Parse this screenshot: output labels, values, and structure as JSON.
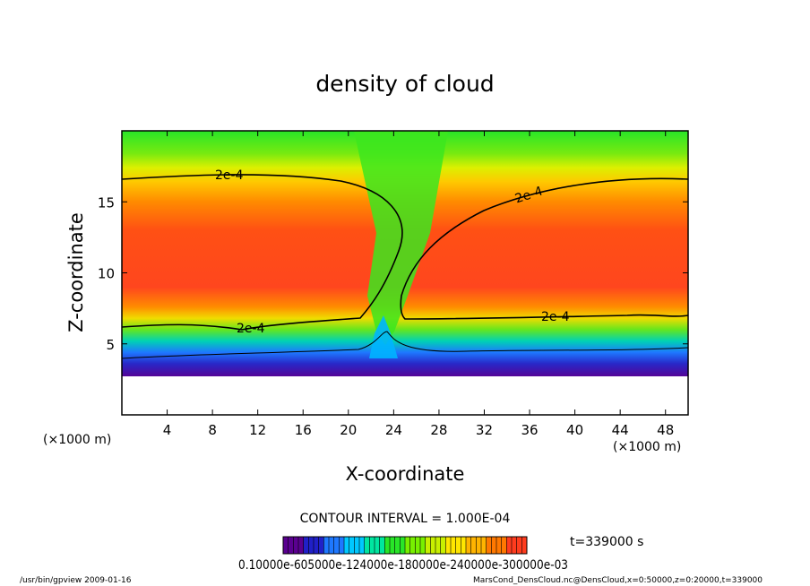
{
  "chart_data": {
    "type": "heatmap",
    "title": "density of cloud",
    "xlabel": "X-coordinate",
    "ylabel": "Z-coordinate",
    "x_unit_label": "(×1000 m)",
    "x_unit_label_right": "(×1000 m)",
    "xlim": [
      0,
      50
    ],
    "ylim": [
      0,
      20
    ],
    "xticks": [
      4,
      8,
      12,
      16,
      20,
      24,
      28,
      32,
      36,
      40,
      44,
      48
    ],
    "yticks": [
      5,
      10,
      15
    ],
    "contour_label": "2e-4",
    "contour_value": 0.0002,
    "contour_interval_text": "CONTOUR INTERVAL = 1.000E-04",
    "time_text": "t=339000 s",
    "colorbar_labels_text": "0.10000e-605000e-124000e-180000e-240000e-300000e-03",
    "colorbar_colors": [
      "#5a0090",
      "#2020c8",
      "#1e78ff",
      "#00c8ff",
      "#00e6a0",
      "#28e628",
      "#78f000",
      "#c8f000",
      "#ffe600",
      "#ffb400",
      "#ff7800",
      "#ff3c1e"
    ],
    "colormap_range": [
      0.0,
      0.00035
    ],
    "footer_left": "/usr/bin/gpview   2009-01-16",
    "footer_right": "MarsCond_DensCloud.nc@DensCloud,x=0:50000,z=0:20000,t=339000"
  }
}
